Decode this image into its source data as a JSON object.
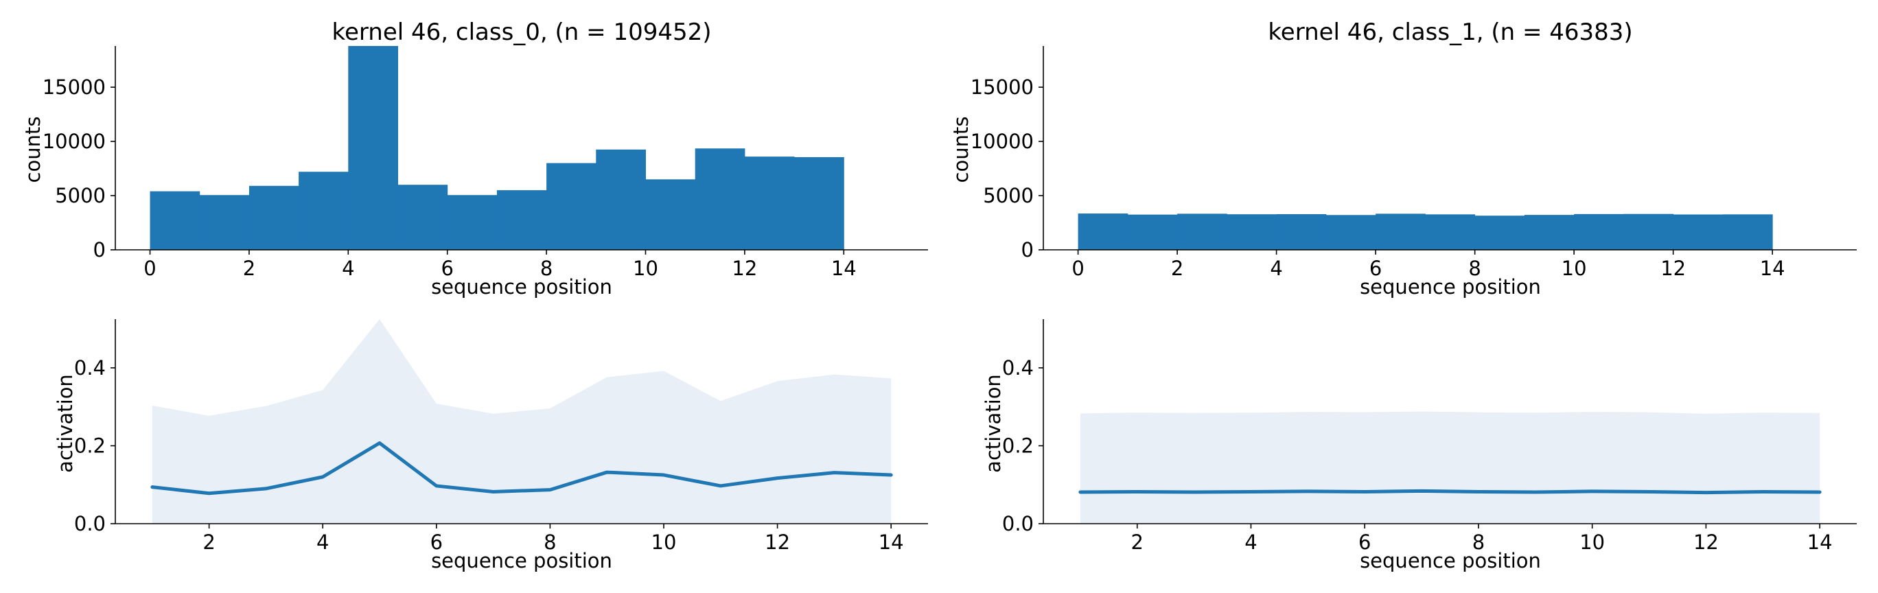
{
  "figure": {
    "colors": {
      "bar": "#1f77b4",
      "line": "#1f77b4",
      "band": "#e8eff7",
      "axis": "#000000"
    }
  },
  "chart_data": [
    {
      "type": "bar",
      "title": "kernel 46, class_0, (n = 109452)",
      "xlabel": "sequence position",
      "ylabel": "counts",
      "bin_edges": [
        0,
        1,
        2,
        3,
        4,
        5,
        6,
        7,
        8,
        9,
        10,
        11,
        12,
        13,
        14
      ],
      "values": [
        5400,
        5050,
        5900,
        7200,
        18800,
        6000,
        5050,
        5500,
        8000,
        9250,
        6500,
        9350,
        8600,
        8550
      ],
      "xlim": [
        -0.7,
        15.7
      ],
      "ylim": [
        0,
        18800
      ],
      "xticks": [
        "0",
        "2",
        "4",
        "6",
        "8",
        "10",
        "12",
        "14"
      ],
      "yticks": [
        "0",
        "5000",
        "10000",
        "15000"
      ],
      "grid": false
    },
    {
      "type": "bar",
      "title": "kernel 46, class_1, (n = 46383)",
      "xlabel": "sequence position",
      "ylabel": "counts",
      "bin_edges": [
        0,
        1,
        2,
        3,
        4,
        5,
        6,
        7,
        8,
        9,
        10,
        11,
        12,
        13,
        14
      ],
      "values": [
        3350,
        3250,
        3330,
        3280,
        3290,
        3210,
        3330,
        3270,
        3150,
        3220,
        3300,
        3310,
        3260,
        3270
      ],
      "xlim": [
        -0.7,
        15.7
      ],
      "ylim": [
        0,
        18800
      ],
      "xticks": [
        "0",
        "2",
        "4",
        "6",
        "8",
        "10",
        "12",
        "14"
      ],
      "yticks": [
        "0",
        "5000",
        "10000",
        "15000"
      ],
      "grid": false
    },
    {
      "type": "line",
      "xlabel": "sequence position",
      "ylabel": "activation",
      "x": [
        1,
        2,
        3,
        4,
        5,
        6,
        7,
        8,
        9,
        10,
        11,
        12,
        13,
        14
      ],
      "y": [
        0.094,
        0.078,
        0.09,
        0.12,
        0.207,
        0.097,
        0.082,
        0.087,
        0.132,
        0.125,
        0.097,
        0.117,
        0.131,
        0.125
      ],
      "band_upper": [
        0.303,
        0.277,
        0.302,
        0.343,
        0.525,
        0.308,
        0.282,
        0.296,
        0.376,
        0.392,
        0.315,
        0.366,
        0.383,
        0.373
      ],
      "band_lower": [
        0,
        0,
        0,
        0,
        0,
        0,
        0,
        0,
        0,
        0,
        0,
        0,
        0,
        0
      ],
      "xlim": [
        0.35,
        14.65
      ],
      "ylim": [
        0,
        0.525
      ],
      "xticks": [
        "2",
        "4",
        "6",
        "8",
        "10",
        "12",
        "14"
      ],
      "yticks": [
        "0.0",
        "0.2",
        "0.4"
      ],
      "grid": false
    },
    {
      "type": "line",
      "xlabel": "sequence position",
      "ylabel": "activation",
      "x": [
        1,
        2,
        3,
        4,
        5,
        6,
        7,
        8,
        9,
        10,
        11,
        12,
        13,
        14
      ],
      "y": [
        0.081,
        0.082,
        0.081,
        0.082,
        0.083,
        0.082,
        0.084,
        0.082,
        0.081,
        0.083,
        0.082,
        0.08,
        0.082,
        0.081
      ],
      "band_upper": [
        0.283,
        0.285,
        0.284,
        0.285,
        0.287,
        0.286,
        0.288,
        0.286,
        0.285,
        0.287,
        0.286,
        0.282,
        0.285,
        0.284
      ],
      "band_lower": [
        0,
        0,
        0,
        0,
        0,
        0,
        0,
        0,
        0,
        0,
        0,
        0,
        0,
        0
      ],
      "xlim": [
        0.35,
        14.65
      ],
      "ylim": [
        0,
        0.525
      ],
      "xticks": [
        "2",
        "4",
        "6",
        "8",
        "10",
        "12",
        "14"
      ],
      "yticks": [
        "0.0",
        "0.2",
        "0.4"
      ],
      "grid": false
    }
  ]
}
